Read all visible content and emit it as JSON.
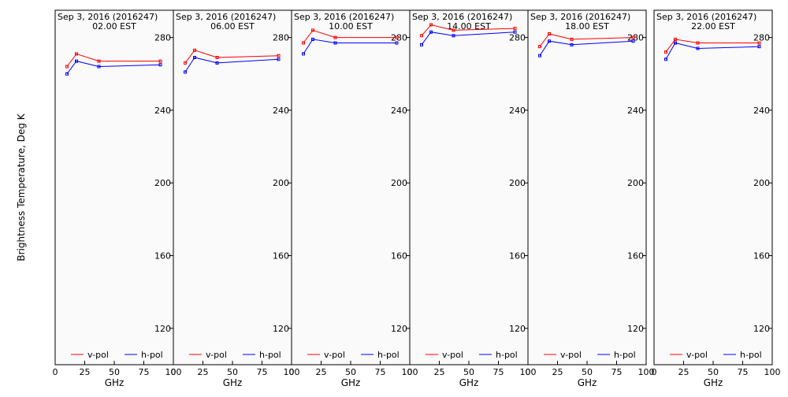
{
  "chart_data": {
    "type": "line",
    "ylabel": "Brightness Temperature, Deg K",
    "xlabel": "GHz",
    "xlim": [
      0,
      100
    ],
    "ylim": [
      100,
      295
    ],
    "x_ticks": [
      "0",
      "25",
      "50",
      "75",
      "100"
    ],
    "y_ticks": [
      "120",
      "160",
      "200",
      "240",
      "280"
    ],
    "x": [
      10,
      18,
      37,
      89
    ],
    "legend": {
      "placement": "bottom",
      "entries": [
        "v-pol",
        "h-pol"
      ]
    },
    "colors": {
      "v-pol": "#ff0000",
      "h-pol": "#0000ff",
      "axis": "#000000",
      "background": "#fafafa"
    },
    "panels": [
      {
        "date": "Sep  3, 2016 (2016247)",
        "time": "02.00 EST",
        "series": [
          {
            "name": "v-pol",
            "values": [
              264,
              271,
              267,
              267
            ]
          },
          {
            "name": "h-pol",
            "values": [
              260,
              267,
              264,
              265
            ]
          }
        ]
      },
      {
        "date": "Sep  3, 2016 (2016247)",
        "time": "06.00 EST",
        "series": [
          {
            "name": "v-pol",
            "values": [
              266,
              273,
              269,
              270
            ]
          },
          {
            "name": "h-pol",
            "values": [
              261,
              269,
              266,
              268
            ]
          }
        ]
      },
      {
        "date": "Sep  3, 2016 (2016247)",
        "time": "10.00 EST",
        "series": [
          {
            "name": "v-pol",
            "values": [
              277,
              284,
              280,
              280
            ]
          },
          {
            "name": "h-pol",
            "values": [
              271,
              279,
              277,
              277
            ]
          }
        ]
      },
      {
        "date": "Sep  3, 2016 (2016247)",
        "time": "14.00 EST",
        "series": [
          {
            "name": "v-pol",
            "values": [
              281,
              287,
              284,
              285
            ]
          },
          {
            "name": "h-pol",
            "values": [
              276,
              283,
              281,
              283
            ]
          }
        ]
      },
      {
        "date": "Sep  3, 2016 (2016247)",
        "time": "18.00 EST",
        "series": [
          {
            "name": "v-pol",
            "values": [
              275,
              282,
              279,
              280
            ]
          },
          {
            "name": "h-pol",
            "values": [
              270,
              278,
              276,
              278
            ]
          }
        ]
      },
      {
        "date": "Sep  3, 2016 (2016247)",
        "time": "22.00 EST",
        "series": [
          {
            "name": "v-pol",
            "values": [
              272,
              279,
              277,
              277
            ]
          },
          {
            "name": "h-pol",
            "values": [
              268,
              277,
              274,
              275
            ]
          }
        ]
      }
    ]
  }
}
